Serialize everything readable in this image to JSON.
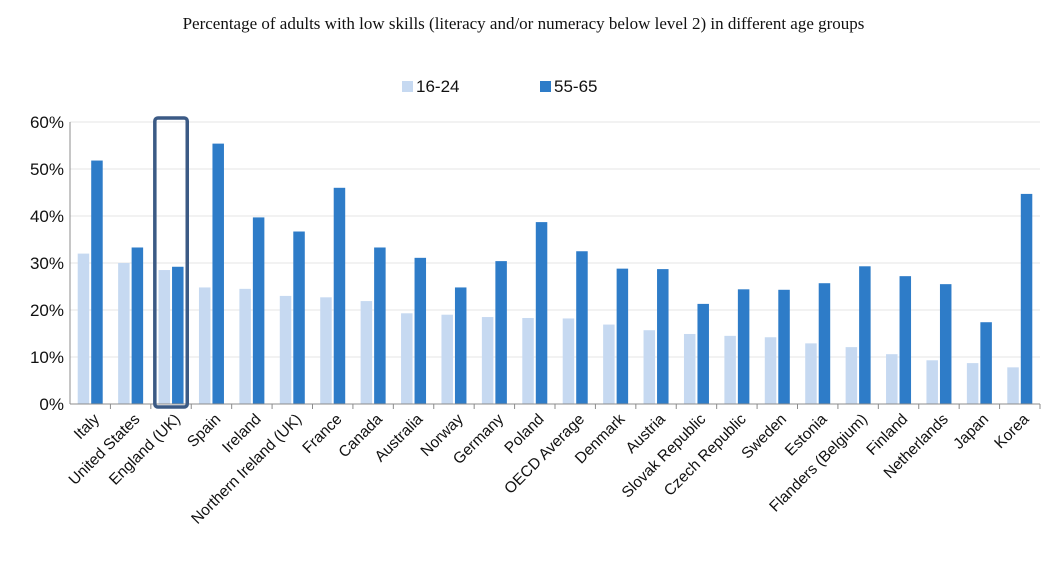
{
  "chart_data": {
    "type": "bar",
    "title": "Percentage of adults with low skills (literacy and/or numeracy below level 2) in different age groups",
    "xlabel": "",
    "ylabel": "",
    "ylim": [
      0,
      60
    ],
    "yticks": [
      "0%",
      "10%",
      "20%",
      "30%",
      "40%",
      "50%",
      "60%"
    ],
    "grid": true,
    "legend": "top-center",
    "highlighted_category": "England (UK)",
    "categories": [
      "Italy",
      "United States",
      "England (UK)",
      "Spain",
      "Ireland",
      "Northern Ireland (UK)",
      "France",
      "Canada",
      "Australia",
      "Norway",
      "Germany",
      "Poland",
      "OECD Average",
      "Denmark",
      "Austria",
      "Slovak Republic",
      "Czech Republic",
      "Sweden",
      "Estonia",
      "Flanders (Belgium)",
      "Finland",
      "Netherlands",
      "Japan",
      "Korea"
    ],
    "series": [
      {
        "name": "16-24",
        "color": "#c6d9f1",
        "values": [
          32.0,
          30.0,
          28.5,
          24.8,
          24.5,
          23.0,
          22.7,
          21.9,
          19.3,
          19.0,
          18.5,
          18.3,
          18.2,
          16.9,
          15.7,
          14.9,
          14.5,
          14.2,
          12.9,
          12.1,
          10.6,
          9.3,
          8.7,
          7.8
        ]
      },
      {
        "name": "55-65",
        "color": "#2e7cc8",
        "values": [
          51.8,
          33.3,
          29.2,
          55.4,
          39.7,
          36.7,
          46.0,
          33.3,
          31.1,
          24.8,
          30.4,
          38.7,
          32.5,
          28.8,
          28.7,
          21.3,
          24.4,
          24.3,
          25.7,
          29.3,
          27.2,
          25.5,
          17.4,
          44.7
        ]
      }
    ]
  }
}
